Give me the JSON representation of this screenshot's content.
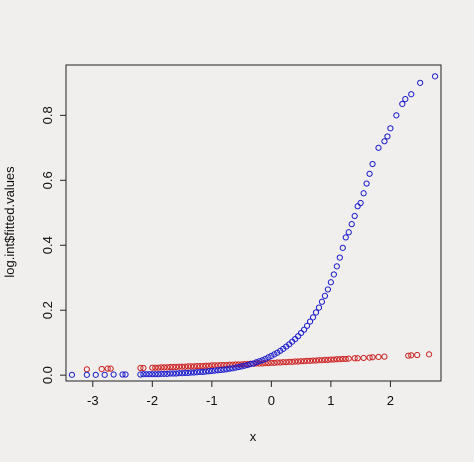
{
  "chart_data": {
    "type": "scatter",
    "title": "",
    "xlabel": "x",
    "ylabel": "log.int$fitted.values",
    "xlim": [
      -3.45,
      2.85
    ],
    "ylim": [
      -0.018,
      0.955
    ],
    "x_ticks": [
      "-3",
      "-2",
      "-1",
      "0",
      "1",
      "2"
    ],
    "y_ticks": [
      "0.0",
      "0.2",
      "0.4",
      "0.6",
      "0.8"
    ],
    "x_tick_values": [
      -3,
      -2,
      -1,
      0,
      1,
      2
    ],
    "y_tick_values": [
      0.0,
      0.2,
      0.4,
      0.6,
      0.8
    ],
    "grid": false,
    "marker": "open-circle",
    "series": [
      {
        "color": "#cc2222",
        "x": [
          -3.1,
          -2.85,
          -2.75,
          -2.7,
          -2.2,
          -2.15,
          -2.0,
          -1.95,
          -1.9,
          -1.85,
          -1.8,
          -1.75,
          -1.7,
          -1.65,
          -1.6,
          -1.55,
          -1.5,
          -1.45,
          -1.4,
          -1.35,
          -1.3,
          -1.25,
          -1.2,
          -1.15,
          -1.1,
          -1.05,
          -1.0,
          -0.95,
          -0.9,
          -0.85,
          -0.8,
          -0.75,
          -0.7,
          -0.65,
          -0.6,
          -0.55,
          -0.5,
          -0.45,
          -0.4,
          -0.35,
          -0.3,
          -0.25,
          -0.2,
          -0.15,
          -0.1,
          -0.05,
          0.0,
          0.05,
          0.1,
          0.15,
          0.2,
          0.25,
          0.3,
          0.35,
          0.4,
          0.45,
          0.5,
          0.55,
          0.6,
          0.65,
          0.7,
          0.75,
          0.8,
          0.85,
          0.9,
          0.95,
          1.0,
          1.05,
          1.1,
          1.15,
          1.2,
          1.25,
          1.3,
          1.4,
          1.45,
          1.55,
          1.65,
          1.7,
          1.8,
          1.9,
          2.3,
          2.35,
          2.45,
          2.65
        ],
        "y": [
          0.018,
          0.019,
          0.02,
          0.02,
          0.022,
          0.022,
          0.023,
          0.023,
          0.023,
          0.024,
          0.024,
          0.024,
          0.025,
          0.025,
          0.025,
          0.026,
          0.026,
          0.026,
          0.027,
          0.027,
          0.027,
          0.028,
          0.028,
          0.028,
          0.029,
          0.029,
          0.03,
          0.03,
          0.03,
          0.031,
          0.031,
          0.031,
          0.032,
          0.032,
          0.033,
          0.033,
          0.033,
          0.034,
          0.034,
          0.035,
          0.035,
          0.036,
          0.036,
          0.036,
          0.037,
          0.037,
          0.038,
          0.038,
          0.039,
          0.039,
          0.04,
          0.04,
          0.041,
          0.041,
          0.042,
          0.042,
          0.043,
          0.043,
          0.044,
          0.044,
          0.045,
          0.045,
          0.046,
          0.046,
          0.047,
          0.047,
          0.048,
          0.048,
          0.049,
          0.049,
          0.05,
          0.05,
          0.051,
          0.052,
          0.052,
          0.053,
          0.054,
          0.055,
          0.056,
          0.057,
          0.06,
          0.061,
          0.062,
          0.064
        ]
      },
      {
        "color": "#1a1acc",
        "x": [
          -3.35,
          -3.1,
          -2.95,
          -2.8,
          -2.65,
          -2.5,
          -2.45,
          -2.2,
          -2.15,
          -2.1,
          -2.05,
          -2.0,
          -1.95,
          -1.9,
          -1.85,
          -1.8,
          -1.75,
          -1.7,
          -1.65,
          -1.6,
          -1.55,
          -1.5,
          -1.45,
          -1.4,
          -1.35,
          -1.3,
          -1.25,
          -1.2,
          -1.15,
          -1.1,
          -1.05,
          -1.0,
          -0.95,
          -0.9,
          -0.85,
          -0.8,
          -0.75,
          -0.7,
          -0.65,
          -0.6,
          -0.55,
          -0.5,
          -0.45,
          -0.4,
          -0.35,
          -0.3,
          -0.25,
          -0.2,
          -0.15,
          -0.1,
          -0.05,
          0.0,
          0.05,
          0.1,
          0.15,
          0.2,
          0.25,
          0.3,
          0.35,
          0.4,
          0.45,
          0.5,
          0.55,
          0.6,
          0.65,
          0.7,
          0.75,
          0.8,
          0.85,
          0.9,
          0.95,
          1.0,
          1.05,
          1.1,
          1.15,
          1.2,
          1.25,
          1.3,
          1.35,
          1.4,
          1.45,
          1.5,
          1.55,
          1.6,
          1.65,
          1.7,
          1.8,
          1.9,
          1.95,
          2.0,
          2.1,
          2.2,
          2.25,
          2.35,
          2.5,
          2.75
        ],
        "y": [
          0.001,
          0.001,
          0.001,
          0.001,
          0.002,
          0.002,
          0.002,
          0.002,
          0.003,
          0.003,
          0.003,
          0.003,
          0.003,
          0.003,
          0.004,
          0.004,
          0.004,
          0.005,
          0.005,
          0.005,
          0.006,
          0.006,
          0.007,
          0.007,
          0.008,
          0.008,
          0.009,
          0.01,
          0.01,
          0.011,
          0.012,
          0.013,
          0.014,
          0.015,
          0.016,
          0.017,
          0.018,
          0.02,
          0.021,
          0.023,
          0.025,
          0.027,
          0.029,
          0.031,
          0.034,
          0.036,
          0.04,
          0.043,
          0.046,
          0.05,
          0.055,
          0.059,
          0.064,
          0.069,
          0.075,
          0.081,
          0.088,
          0.095,
          0.103,
          0.111,
          0.12,
          0.13,
          0.14,
          0.152,
          0.165,
          0.178,
          0.193,
          0.208,
          0.226,
          0.244,
          0.264,
          0.286,
          0.31,
          0.335,
          0.362,
          0.392,
          0.424,
          0.44,
          0.465,
          0.49,
          0.52,
          0.53,
          0.56,
          0.59,
          0.62,
          0.65,
          0.7,
          0.72,
          0.735,
          0.76,
          0.8,
          0.835,
          0.85,
          0.865,
          0.9,
          0.92
        ]
      }
    ]
  }
}
